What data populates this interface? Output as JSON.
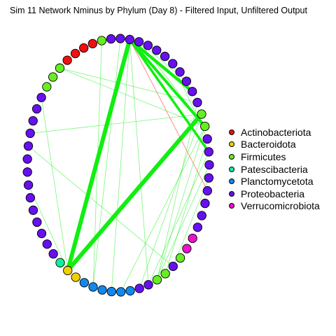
{
  "title": "Sim 11 Network Nminus by Phylum (Day 8) - Filtered Input, Unfiltered Output",
  "chart_data": {
    "type": "network",
    "layout": "circle",
    "node_count": 61,
    "legend": [
      {
        "label": "Actinobacteriota",
        "color": "#ee1111"
      },
      {
        "label": "Bacteroidota",
        "color": "#f0d000"
      },
      {
        "label": "Firmicutes",
        "color": "#66ee22"
      },
      {
        "label": "Patescibacteria",
        "color": "#11ee99"
      },
      {
        "label": "Planctomycetota",
        "color": "#1188ee"
      },
      {
        "label": "Proteobacteria",
        "color": "#6611ee"
      },
      {
        "label": "Verrucomicrobiota",
        "color": "#ee11cc"
      }
    ],
    "nodes": [
      {
        "i": 0,
        "phylum": "Proteobacteria"
      },
      {
        "i": 1,
        "phylum": "Proteobacteria"
      },
      {
        "i": 2,
        "phylum": "Proteobacteria"
      },
      {
        "i": 3,
        "phylum": "Proteobacteria"
      },
      {
        "i": 4,
        "phylum": "Proteobacteria"
      },
      {
        "i": 5,
        "phylum": "Proteobacteria"
      },
      {
        "i": 6,
        "phylum": "Proteobacteria"
      },
      {
        "i": 7,
        "phylum": "Proteobacteria"
      },
      {
        "i": 8,
        "phylum": "Proteobacteria"
      },
      {
        "i": 9,
        "phylum": "Proteobacteria"
      },
      {
        "i": 10,
        "phylum": "Proteobacteria"
      },
      {
        "i": 11,
        "phylum": "Firmicutes"
      },
      {
        "i": 12,
        "phylum": "Firmicutes"
      },
      {
        "i": 13,
        "phylum": "Proteobacteria"
      },
      {
        "i": 14,
        "phylum": "Proteobacteria"
      },
      {
        "i": 15,
        "phylum": "Proteobacteria"
      },
      {
        "i": 16,
        "phylum": "Proteobacteria"
      },
      {
        "i": 17,
        "phylum": "Proteobacteria"
      },
      {
        "i": 18,
        "phylum": "Proteobacteria"
      },
      {
        "i": 19,
        "phylum": "Proteobacteria"
      },
      {
        "i": 20,
        "phylum": "Proteobacteria"
      },
      {
        "i": 21,
        "phylum": "Verrucomicrobiota"
      },
      {
        "i": 22,
        "phylum": "Verrucomicrobiota"
      },
      {
        "i": 23,
        "phylum": "Firmicutes"
      },
      {
        "i": 24,
        "phylum": "Proteobacteria"
      },
      {
        "i": 25,
        "phylum": "Firmicutes"
      },
      {
        "i": 26,
        "phylum": "Firmicutes"
      },
      {
        "i": 27,
        "phylum": "Proteobacteria"
      },
      {
        "i": 28,
        "phylum": "Proteobacteria"
      },
      {
        "i": 29,
        "phylum": "Planctomycetota"
      },
      {
        "i": 30,
        "phylum": "Planctomycetota"
      },
      {
        "i": 31,
        "phylum": "Planctomycetota"
      },
      {
        "i": 32,
        "phylum": "Planctomycetota"
      },
      {
        "i": 33,
        "phylum": "Planctomycetota"
      },
      {
        "i": 34,
        "phylum": "Planctomycetota"
      },
      {
        "i": 35,
        "phylum": "Bacteroidota"
      },
      {
        "i": 36,
        "phylum": "Bacteroidota"
      },
      {
        "i": 37,
        "phylum": "Patescibacteria"
      },
      {
        "i": 38,
        "phylum": "Proteobacteria"
      },
      {
        "i": 39,
        "phylum": "Proteobacteria"
      },
      {
        "i": 40,
        "phylum": "Proteobacteria"
      },
      {
        "i": 41,
        "phylum": "Proteobacteria"
      },
      {
        "i": 42,
        "phylum": "Proteobacteria"
      },
      {
        "i": 43,
        "phylum": "Proteobacteria"
      },
      {
        "i": 44,
        "phylum": "Proteobacteria"
      },
      {
        "i": 45,
        "phylum": "Proteobacteria"
      },
      {
        "i": 46,
        "phylum": "Proteobacteria"
      },
      {
        "i": 47,
        "phylum": "Proteobacteria"
      },
      {
        "i": 48,
        "phylum": "Proteobacteria"
      },
      {
        "i": 49,
        "phylum": "Proteobacteria"
      },
      {
        "i": 50,
        "phylum": "Proteobacteria"
      },
      {
        "i": 51,
        "phylum": "Proteobacteria"
      },
      {
        "i": 52,
        "phylum": "Firmicutes"
      },
      {
        "i": 53,
        "phylum": "Firmicutes"
      },
      {
        "i": 54,
        "phylum": "Firmicutes"
      },
      {
        "i": 55,
        "phylum": "Actinobacteriota"
      },
      {
        "i": 56,
        "phylum": "Actinobacteriota"
      },
      {
        "i": 57,
        "phylum": "Actinobacteriota"
      },
      {
        "i": 58,
        "phylum": "Actinobacteriota"
      },
      {
        "i": 59,
        "phylum": "Firmicutes"
      },
      {
        "i": 60,
        "phylum": "Proteobacteria"
      }
    ],
    "edges": [
      {
        "source": 1,
        "target": 36,
        "sign": "positive",
        "weight": 6
      },
      {
        "source": 1,
        "target": 9,
        "sign": "positive",
        "weight": 4.5
      },
      {
        "source": 1,
        "target": 12,
        "sign": "positive",
        "weight": 4
      },
      {
        "source": 1,
        "target": 14,
        "sign": "positive",
        "weight": 3.5
      },
      {
        "source": 36,
        "target": 11,
        "sign": "positive",
        "weight": 6
      },
      {
        "source": 1,
        "target": 17,
        "sign": "negative",
        "weight": 0.8
      },
      {
        "source": 54,
        "target": 10,
        "sign": "positive",
        "weight": 0.8
      },
      {
        "source": 54,
        "target": 12,
        "sign": "positive",
        "weight": 0.8
      },
      {
        "source": 48,
        "target": 11,
        "sign": "positive",
        "weight": 0.8
      },
      {
        "source": 51,
        "target": 36,
        "sign": "positive",
        "weight": 0.8
      },
      {
        "source": 0,
        "target": 33,
        "sign": "positive",
        "weight": 0.8
      },
      {
        "source": 59,
        "target": 33,
        "sign": "positive",
        "weight": 0.8
      },
      {
        "source": 1,
        "target": 31,
        "sign": "positive",
        "weight": 0.8
      },
      {
        "source": 1,
        "target": 27,
        "sign": "positive",
        "weight": 0.8
      },
      {
        "source": 2,
        "target": 12,
        "sign": "positive",
        "weight": 0.8
      },
      {
        "source": 6,
        "target": 13,
        "sign": "positive",
        "weight": 0.8
      },
      {
        "source": 10,
        "target": 26,
        "sign": "positive",
        "weight": 0.8
      },
      {
        "source": 11,
        "target": 28,
        "sign": "positive",
        "weight": 0.8
      },
      {
        "source": 12,
        "target": 26,
        "sign": "positive",
        "weight": 0.8
      },
      {
        "source": 13,
        "target": 25,
        "sign": "positive",
        "weight": 0.8
      },
      {
        "source": 14,
        "target": 27,
        "sign": "positive",
        "weight": 0.8
      },
      {
        "source": 15,
        "target": 26,
        "sign": "positive",
        "weight": 0.8
      },
      {
        "source": 16,
        "target": 24,
        "sign": "positive",
        "weight": 0.8
      },
      {
        "source": 12,
        "target": 30,
        "sign": "positive",
        "weight": 0.8
      },
      {
        "source": 47,
        "target": 24,
        "sign": "positive",
        "weight": 0.8
      },
      {
        "source": 44,
        "target": 36,
        "sign": "positive",
        "weight": 0.8
      },
      {
        "source": 2,
        "target": 8,
        "sign": "positive",
        "weight": 0.8
      }
    ]
  }
}
